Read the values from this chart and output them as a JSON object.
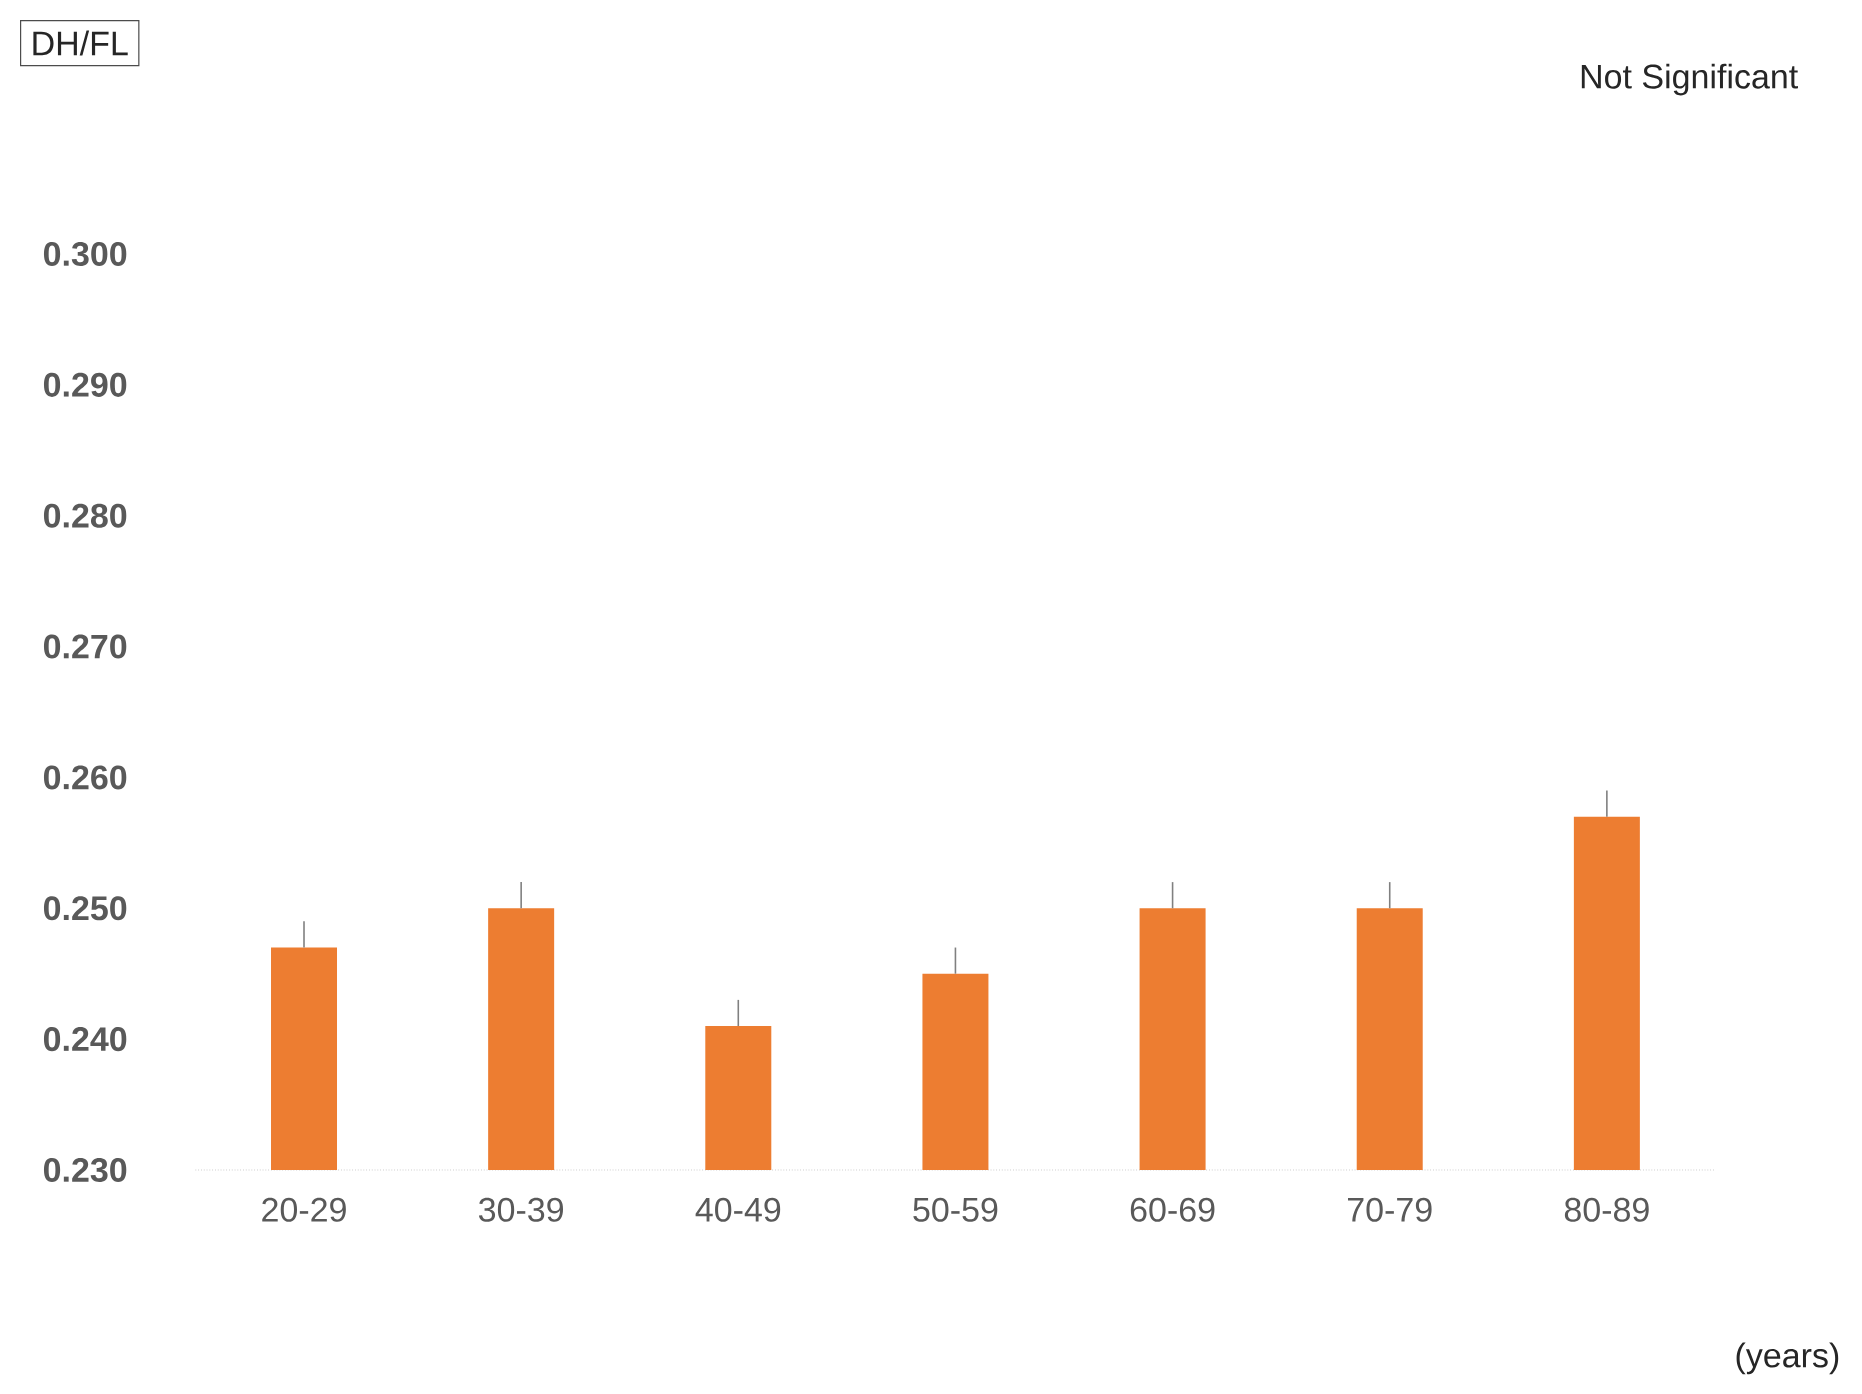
{
  "chart_data": {
    "type": "bar",
    "xlabel": "(years)",
    "annotations": [
      "DH/FL",
      "Not Significant"
    ],
    "categories": [
      "20-29",
      "30-39",
      "40-49",
      "50-59",
      "60-69",
      "70-79",
      "80-89"
    ],
    "values": [
      0.247,
      0.25,
      0.241,
      0.245,
      0.25,
      0.25,
      0.257
    ],
    "errors": [
      [
        0.247,
        0.249
      ],
      [
        0.25,
        0.252
      ],
      [
        0.241,
        0.243
      ],
      [
        0.245,
        0.247
      ],
      [
        0.25,
        0.252
      ],
      [
        0.25,
        0.252
      ],
      [
        0.257,
        0.259
      ]
    ],
    "color": "#ed7d31",
    "ylim": [
      0.23,
      0.3
    ],
    "yticks": [
      {
        "value": 0.23,
        "label": "0.230"
      },
      {
        "value": 0.24,
        "label": "0.240"
      },
      {
        "value": 0.25,
        "label": "0.250"
      },
      {
        "value": 0.26,
        "label": "0.260"
      },
      {
        "value": 0.27,
        "label": "0.270"
      },
      {
        "value": 0.28,
        "label": "0.280"
      },
      {
        "value": 0.29,
        "label": "0.290"
      },
      {
        "value": 0.3,
        "label": "0.300"
      }
    ]
  }
}
